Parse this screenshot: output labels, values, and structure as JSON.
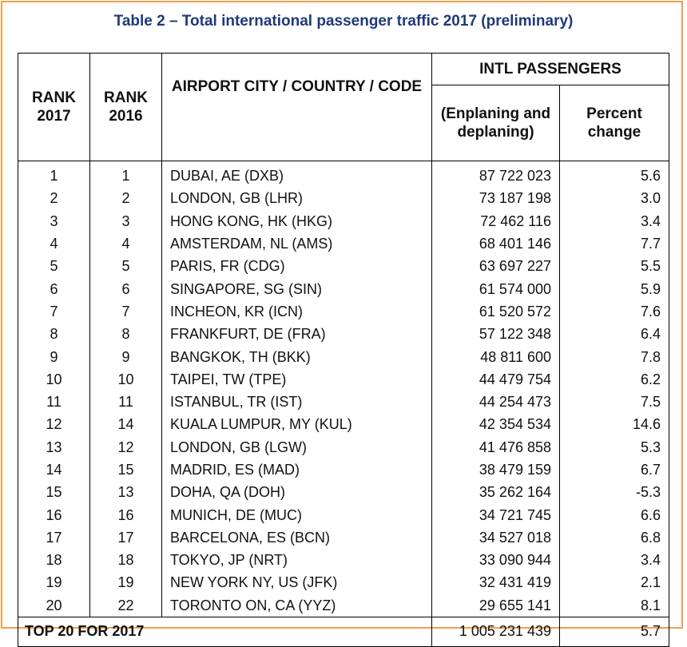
{
  "title": "Table 2 – Total international passenger traffic 2017 (preliminary)",
  "headers": {
    "rank2017": "RANK 2017",
    "rank2016": "RANK 2016",
    "airport": "AIRPORT CITY / COUNTRY / CODE",
    "group": "INTL PASSENGERS",
    "passengers": "(Enplaning and deplaning)",
    "change": "Percent change"
  },
  "rows": [
    {
      "r17": "1",
      "r16": "1",
      "airport": "DUBAI, AE (DXB)",
      "pax": "87 722 023",
      "pct": "5.6"
    },
    {
      "r17": "2",
      "r16": "2",
      "airport": "LONDON, GB (LHR)",
      "pax": "73 187 198",
      "pct": "3.0"
    },
    {
      "r17": "3",
      "r16": "3",
      "airport": "HONG KONG, HK (HKG)",
      "pax": "72 462 116",
      "pct": "3.4"
    },
    {
      "r17": "4",
      "r16": "4",
      "airport": "AMSTERDAM, NL (AMS)",
      "pax": "68 401 146",
      "pct": "7.7"
    },
    {
      "r17": "5",
      "r16": "5",
      "airport": "PARIS, FR (CDG)",
      "pax": "63 697 227",
      "pct": "5.5"
    },
    {
      "r17": "6",
      "r16": "6",
      "airport": "SINGAPORE, SG (SIN)",
      "pax": "61 574 000",
      "pct": "5.9"
    },
    {
      "r17": "7",
      "r16": "7",
      "airport": "INCHEON, KR (ICN)",
      "pax": "61 520 572",
      "pct": "7.6"
    },
    {
      "r17": "8",
      "r16": "8",
      "airport": "FRANKFURT, DE (FRA)",
      "pax": "57 122 348",
      "pct": "6.4"
    },
    {
      "r17": "9",
      "r16": "9",
      "airport": "BANGKOK, TH (BKK)",
      "pax": "48 811 600",
      "pct": "7.8"
    },
    {
      "r17": "10",
      "r16": "10",
      "airport": "TAIPEI, TW (TPE)",
      "pax": "44 479 754",
      "pct": "6.2"
    },
    {
      "r17": "11",
      "r16": "11",
      "airport": "ISTANBUL, TR (IST)",
      "pax": "44 254 473",
      "pct": "7.5"
    },
    {
      "r17": "12",
      "r16": "14",
      "airport": "KUALA LUMPUR, MY (KUL)",
      "pax": "42 354 534",
      "pct": "14.6"
    },
    {
      "r17": "13",
      "r16": "12",
      "airport": "LONDON, GB (LGW)",
      "pax": "41 476 858",
      "pct": "5.3"
    },
    {
      "r17": "14",
      "r16": "15",
      "airport": "MADRID, ES (MAD)",
      "pax": "38 479 159",
      "pct": "6.7"
    },
    {
      "r17": "15",
      "r16": "13",
      "airport": "DOHA, QA (DOH)",
      "pax": "35 262 164",
      "pct": "-5.3"
    },
    {
      "r17": "16",
      "r16": "16",
      "airport": "MUNICH, DE (MUC)",
      "pax": "34 721 745",
      "pct": "6.6"
    },
    {
      "r17": "17",
      "r16": "17",
      "airport": "BARCELONA, ES (BCN)",
      "pax": "34 527 018",
      "pct": "6.8"
    },
    {
      "r17": "18",
      "r16": "18",
      "airport": "TOKYO, JP (NRT)",
      "pax": "33 090 944",
      "pct": "3.4"
    },
    {
      "r17": "19",
      "r16": "19",
      "airport": "NEW YORK NY, US (JFK)",
      "pax": "32 431 419",
      "pct": "2.1"
    },
    {
      "r17": "20",
      "r16": "22",
      "airport": "TORONTO ON, CA (YYZ)",
      "pax": "29 655 141",
      "pct": "8.1"
    }
  ],
  "footer": {
    "label": "TOP 20 FOR 2017",
    "pax": "1 005 231 439",
    "pct": "5.7"
  }
}
